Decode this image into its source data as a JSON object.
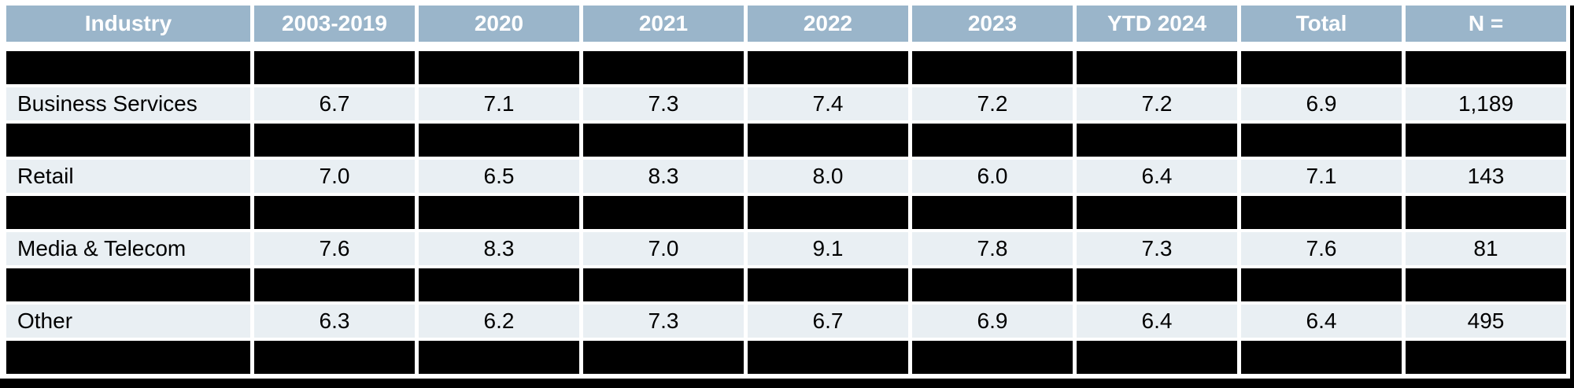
{
  "colors": {
    "header_bg": "#9ab5ca",
    "header_text": "#ffffff",
    "row_bg": "#e9eff3",
    "redacted": "#000000"
  },
  "chart_data": {
    "type": "table",
    "title": "",
    "columns": [
      "Industry",
      "2003-2019",
      "2020",
      "2021",
      "2022",
      "2023",
      "YTD 2024",
      "Total",
      "N ="
    ],
    "rows": [
      {
        "label": "",
        "redacted": true
      },
      {
        "label": "Business Services",
        "redacted": false,
        "values": [
          "6.7",
          "7.1",
          "7.3",
          "7.4",
          "7.2",
          "7.2",
          "6.9",
          "1,189"
        ]
      },
      {
        "label": "",
        "redacted": true
      },
      {
        "label": "Retail",
        "redacted": false,
        "values": [
          "7.0",
          "6.5",
          "8.3",
          "8.0",
          "6.0",
          "6.4",
          "7.1",
          "143"
        ]
      },
      {
        "label": "",
        "redacted": true
      },
      {
        "label": "Media & Telecom",
        "redacted": false,
        "values": [
          "7.6",
          "8.3",
          "7.0",
          "9.1",
          "7.8",
          "7.3",
          "7.6",
          "81"
        ]
      },
      {
        "label": "",
        "redacted": true
      },
      {
        "label": "Other",
        "redacted": false,
        "values": [
          "6.3",
          "6.2",
          "7.3",
          "6.7",
          "6.9",
          "6.4",
          "6.4",
          "495"
        ]
      },
      {
        "label": "",
        "redacted": true
      }
    ],
    "layout_hints": {
      "redacted_rows_alternate": true,
      "first_column_align": "left",
      "value_columns_align": "center"
    }
  }
}
